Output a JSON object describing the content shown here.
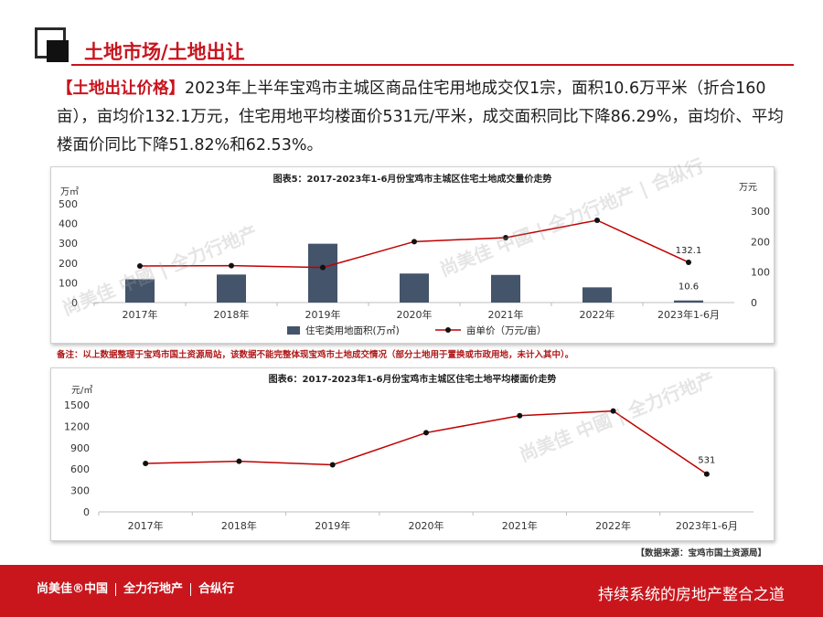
{
  "header": {
    "title": "土地市场/土地出让"
  },
  "intro": {
    "bracket_label": "【土地出让价格】",
    "text": "2023年上半年宝鸡市主城区商品住宅用地成交仅1宗，面积10.6万平米（折合160亩），亩均价132.1万元，住宅用地平均楼面价531元/平米，成交面积同比下降86.29%，亩均价、平均楼面价同比下降51.82%和62.53%。"
  },
  "chart_data": [
    {
      "type": "bar",
      "title": "图表5：2017-2023年1-6月份宝鸡市主城区住宅土地成交量价走势",
      "categories": [
        "2017年",
        "2018年",
        "2019年",
        "2020年",
        "2021年",
        "2022年",
        "2023年1-6月"
      ],
      "y_left_unit": "万㎡",
      "y_right_unit": "万元",
      "y_left_ticks": [
        "500",
        "400",
        "300",
        "200",
        "100",
        "0"
      ],
      "y_right_ticks": [
        "300",
        "200",
        "100",
        "0"
      ],
      "ylim_left": [
        0,
        500
      ],
      "ylim_right": [
        0,
        300
      ],
      "series": [
        {
          "name": "住宅类用地面积(万㎡)",
          "kind": "bar",
          "axis": "left",
          "color": "#44546a",
          "values": [
            118,
            142,
            298,
            147,
            140,
            77,
            10.6
          ]
        },
        {
          "name": "亩单价（万元/亩）",
          "kind": "line",
          "axis": "right",
          "color": "#c00000",
          "values": [
            120,
            121,
            115,
            200,
            213,
            270,
            132.1
          ]
        }
      ],
      "data_labels": [
        "132.1",
        "10.6"
      ],
      "legend_position": "bottom",
      "grid": false
    },
    {
      "type": "line",
      "title": "图表6：2017-2023年1-6月份宝鸡市主城区住宅土地平均楼面价走势",
      "categories": [
        "2017年",
        "2018年",
        "2019年",
        "2020年",
        "2021年",
        "2022年",
        "2023年1-6月"
      ],
      "y_unit": "元/㎡",
      "y_ticks": [
        "1500",
        "1200",
        "900",
        "600",
        "300",
        "0"
      ],
      "ylim": [
        0,
        1500
      ],
      "series": [
        {
          "name": "平均楼面价",
          "color": "#c00000",
          "values": [
            680,
            710,
            660,
            1110,
            1350,
            1415,
            531
          ]
        }
      ],
      "data_labels": [
        "531"
      ],
      "grid": false
    }
  ],
  "note": "备注：以上数据整理于宝鸡市国土资源局站，该数据不能完整体现宝鸡市土地成交情况（部分土地用于置换或市政用地，未计入其中）。",
  "source": "【数据来源：宝鸡市国土资源局】",
  "footer": {
    "brand_1": "尚美佳®中国",
    "brand_2": "全力行地产",
    "brand_3": "合纵行",
    "slogan": "持续系统的房地产整合之道"
  }
}
